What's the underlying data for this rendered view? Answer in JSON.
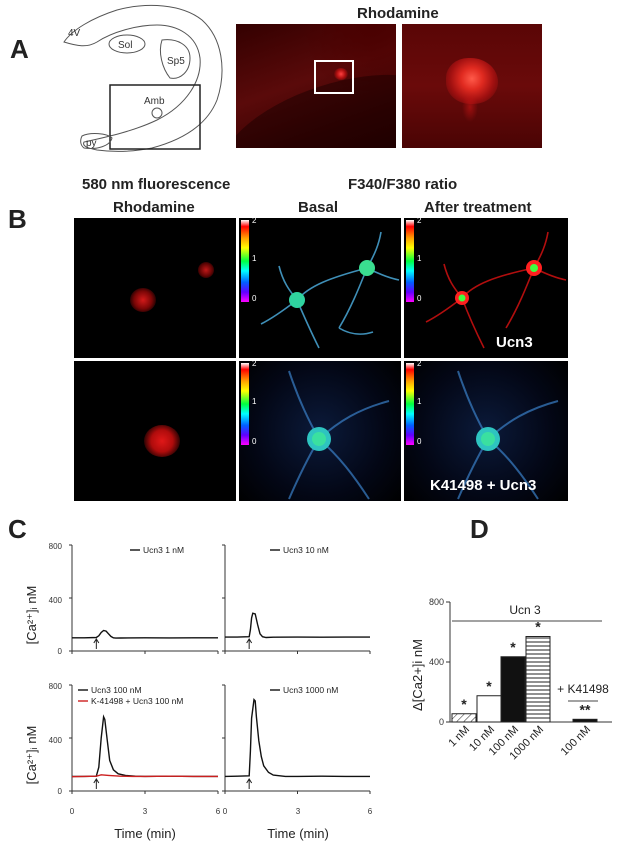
{
  "panel_a": {
    "letter": "A",
    "rhodamine_title": "Rhodamine",
    "diagram_labels": [
      "4V",
      "Sol",
      "Sp5",
      "Amb",
      "py"
    ]
  },
  "panel_b": {
    "letter": "B",
    "header_580": "580 nm fluorescence",
    "header_ratio": "F340/F380 ratio",
    "col1": "Rhodamine",
    "col2": "Basal",
    "col3": "After treatment",
    "overlay_top": "Ucn3",
    "overlay_bottom": "K41498 + Ucn3",
    "colorbar_ticks": [
      "2",
      "1",
      "0"
    ]
  },
  "panel_c": {
    "letter": "C",
    "ylabel": "[Ca²⁺]ᵢ nM",
    "xlabel": "Time (min)",
    "yticks": [
      "800",
      "400",
      "0"
    ],
    "xticks": [
      "0",
      "3",
      "6"
    ],
    "plots": [
      {
        "legend": [
          "Ucn3 1 nM"
        ]
      },
      {
        "legend": [
          "Ucn3 10 nM"
        ]
      },
      {
        "legend": [
          "Ucn3 100 nM",
          "K-41498 + Ucn3 100 nM"
        ]
      },
      {
        "legend": [
          "Ucn3 1000 nM"
        ]
      }
    ],
    "trace_color_black": "#111111",
    "trace_color_red": "#cc1f1f"
  },
  "chart_data": [
    {
      "type": "line",
      "title": "",
      "legend": [
        "Ucn3 1 nM"
      ],
      "xlabel": "Time (min)",
      "ylabel": "[Ca2+]i nM",
      "xlim": [
        0,
        6
      ],
      "ylim": [
        0,
        800
      ],
      "series": [
        {
          "name": "Ucn3 1 nM",
          "x": [
            0,
            0.5,
            1.0,
            1.1,
            1.2,
            1.3,
            1.4,
            1.5,
            1.6,
            1.7,
            1.8,
            2.0,
            3,
            4,
            5,
            6
          ],
          "y": [
            100,
            100,
            102,
            115,
            140,
            155,
            150,
            130,
            110,
            100,
            97,
            98,
            100,
            99,
            100,
            100
          ]
        }
      ]
    },
    {
      "type": "line",
      "title": "",
      "legend": [
        "Ucn3 10 nM"
      ],
      "xlabel": "Time (min)",
      "ylabel": "[Ca2+]i nM",
      "xlim": [
        0,
        6
      ],
      "ylim": [
        0,
        800
      ],
      "series": [
        {
          "name": "Ucn3 10 nM",
          "x": [
            0,
            0.5,
            1.0,
            1.05,
            1.1,
            1.15,
            1.25,
            1.35,
            1.45,
            1.55,
            1.7,
            2.0,
            3,
            4,
            5,
            6
          ],
          "y": [
            105,
            105,
            108,
            160,
            250,
            285,
            280,
            200,
            130,
            108,
            102,
            104,
            105,
            104,
            105,
            105
          ]
        }
      ]
    },
    {
      "type": "line",
      "title": "",
      "legend": [
        "Ucn3 100 nM",
        "K-41498 + Ucn3 100 nM"
      ],
      "xlabel": "Time (min)",
      "ylabel": "[Ca2+]i nM",
      "xlim": [
        0,
        6
      ],
      "ylim": [
        0,
        800
      ],
      "series": [
        {
          "name": "Ucn3 100 nM",
          "x": [
            0,
            0.5,
            1.0,
            1.1,
            1.2,
            1.3,
            1.35,
            1.45,
            1.55,
            1.7,
            1.9,
            2.2,
            2.6,
            3,
            4,
            5,
            6
          ],
          "y": [
            110,
            110,
            112,
            180,
            400,
            560,
            540,
            380,
            230,
            160,
            130,
            118,
            112,
            110,
            112,
            110,
            110
          ]
        },
        {
          "name": "K-41498 + Ucn3 100 nM",
          "x": [
            0,
            0.5,
            1.0,
            1.2,
            1.5,
            2,
            2.5,
            3,
            4,
            5,
            6
          ],
          "y": [
            108,
            110,
            112,
            122,
            118,
            112,
            110,
            110,
            112,
            110,
            110
          ]
        }
      ]
    },
    {
      "type": "line",
      "title": "",
      "legend": [
        "Ucn3 1000 nM"
      ],
      "xlabel": "Time (min)",
      "ylabel": "[Ca2+]i nM",
      "xlim": [
        0,
        6
      ],
      "ylim": [
        0,
        800
      ],
      "series": [
        {
          "name": "Ucn3 1000 nM",
          "x": [
            0,
            0.5,
            1.0,
            1.05,
            1.1,
            1.2,
            1.25,
            1.3,
            1.4,
            1.5,
            1.6,
            1.8,
            2.0,
            2.5,
            3,
            4,
            5,
            6
          ],
          "y": [
            110,
            112,
            115,
            300,
            550,
            690,
            680,
            560,
            380,
            260,
            190,
            140,
            120,
            110,
            110,
            112,
            110,
            110
          ]
        }
      ]
    },
    {
      "type": "bar",
      "title": "",
      "group_label": "Ucn 3",
      "extra_label": "+ K41498",
      "ylabel": "Δ[Ca2+]i nM",
      "ylim": [
        0,
        800
      ],
      "yticks": [
        "800",
        "400",
        "0"
      ],
      "categories": [
        "1 nM",
        "10 nM",
        "100 nM",
        "1000 nM",
        "100 nM"
      ],
      "values": [
        55,
        175,
        435,
        570,
        18
      ],
      "significance": [
        "*",
        "*",
        "*",
        "*",
        "**"
      ],
      "fills": [
        "hatch-diag",
        "white",
        "black",
        "hatch-horiz",
        "black"
      ]
    }
  ],
  "panel_d_letter": "D"
}
